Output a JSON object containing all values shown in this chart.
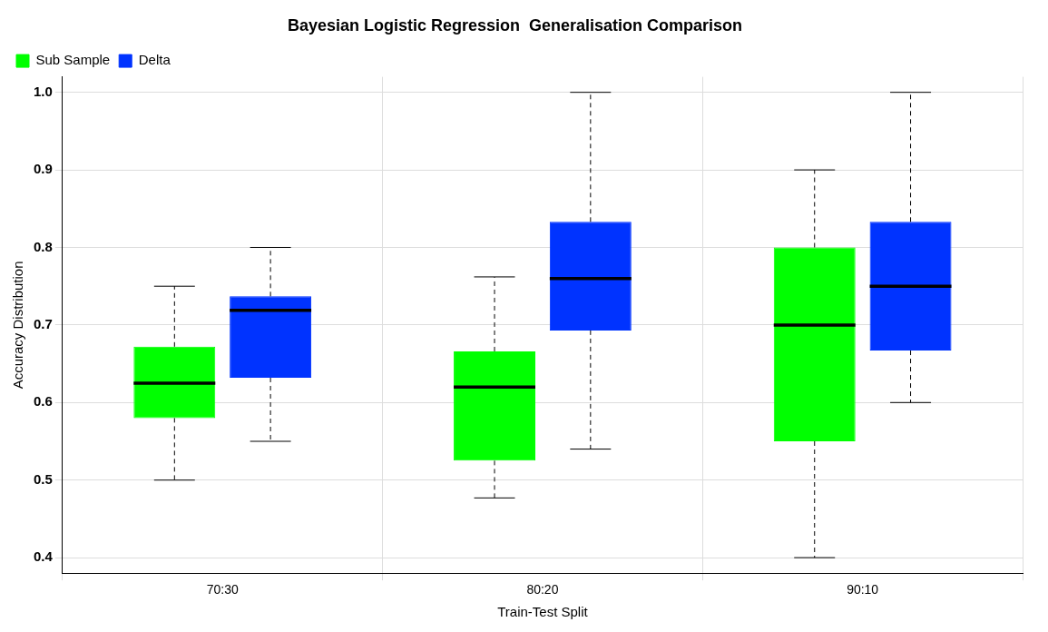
{
  "chart_data": {
    "type": "box",
    "title": "Bayesian Logistic Regression  Generalisation Comparison",
    "xlabel": "Train-Test Split",
    "ylabel": "Accuracy Distribution",
    "categories": [
      "70:30",
      "80:20",
      "90:10"
    ],
    "series": [
      {
        "name": "Sub Sample",
        "color": "#00ff00",
        "boxes": [
          {
            "low": 0.5,
            "q1": 0.58,
            "median": 0.625,
            "q3": 0.672,
            "high": 0.75
          },
          {
            "low": 0.477,
            "q1": 0.525,
            "median": 0.62,
            "q3": 0.666,
            "high": 0.762
          },
          {
            "low": 0.4,
            "q1": 0.55,
            "median": 0.7,
            "q3": 0.8,
            "high": 0.9
          }
        ]
      },
      {
        "name": "Delta",
        "color": "#0033ff",
        "boxes": [
          {
            "low": 0.55,
            "q1": 0.632,
            "median": 0.719,
            "q3": 0.737,
            "high": 0.8
          },
          {
            "low": 0.54,
            "q1": 0.693,
            "median": 0.76,
            "q3": 0.833,
            "high": 1.0
          },
          {
            "low": 0.6,
            "q1": 0.667,
            "median": 0.75,
            "q3": 0.833,
            "high": 1.0
          }
        ]
      }
    ],
    "ylim": [
      0.38,
      1.02
    ],
    "yticks": [
      0.4,
      0.5,
      0.6,
      0.7,
      0.8,
      0.9,
      {
        "value": 1,
        "label": "1.0"
      }
    ],
    "grid": true,
    "legend": "top left"
  }
}
